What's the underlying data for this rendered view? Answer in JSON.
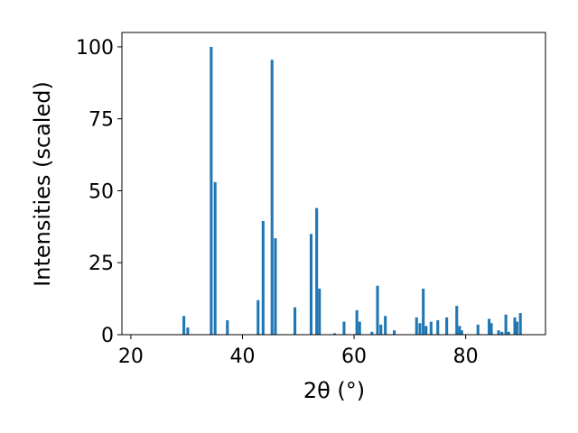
{
  "chart_data": {
    "type": "bar",
    "xlabel": "2θ (°)",
    "ylabel": "Intensities (scaled)",
    "x": [
      29.5,
      30.2,
      34.4,
      35.1,
      37.3,
      42.8,
      43.7,
      45.3,
      45.9,
      49.4,
      52.3,
      53.3,
      53.8,
      56.5,
      58.2,
      60.5,
      61.0,
      63.2,
      64.2,
      64.8,
      65.6,
      67.2,
      71.2,
      71.8,
      72.4,
      72.9,
      73.8,
      75.0,
      76.6,
      78.4,
      78.9,
      79.3,
      82.2,
      84.2,
      84.6,
      85.9,
      86.5,
      87.2,
      87.7,
      88.8,
      89.2,
      89.8
    ],
    "values": [
      6.5,
      2.5,
      100,
      53,
      5,
      12,
      39.5,
      95.5,
      33.5,
      9.5,
      35,
      44,
      16,
      0.5,
      4.5,
      8.5,
      4.5,
      1,
      17,
      3.5,
      6.5,
      1.5,
      6,
      4,
      16,
      3,
      4.5,
      5,
      6,
      10,
      3,
      1.5,
      3.5,
      5.5,
      4,
      1.5,
      1,
      7,
      1,
      6,
      4.5,
      7.5
    ],
    "color": "#1f77b4",
    "xlim": [
      18.4,
      94.3
    ],
    "xticks": [
      20,
      40,
      60,
      80
    ],
    "ylim": [
      0,
      105
    ],
    "yticks": [
      0,
      25,
      50,
      75,
      100
    ]
  }
}
